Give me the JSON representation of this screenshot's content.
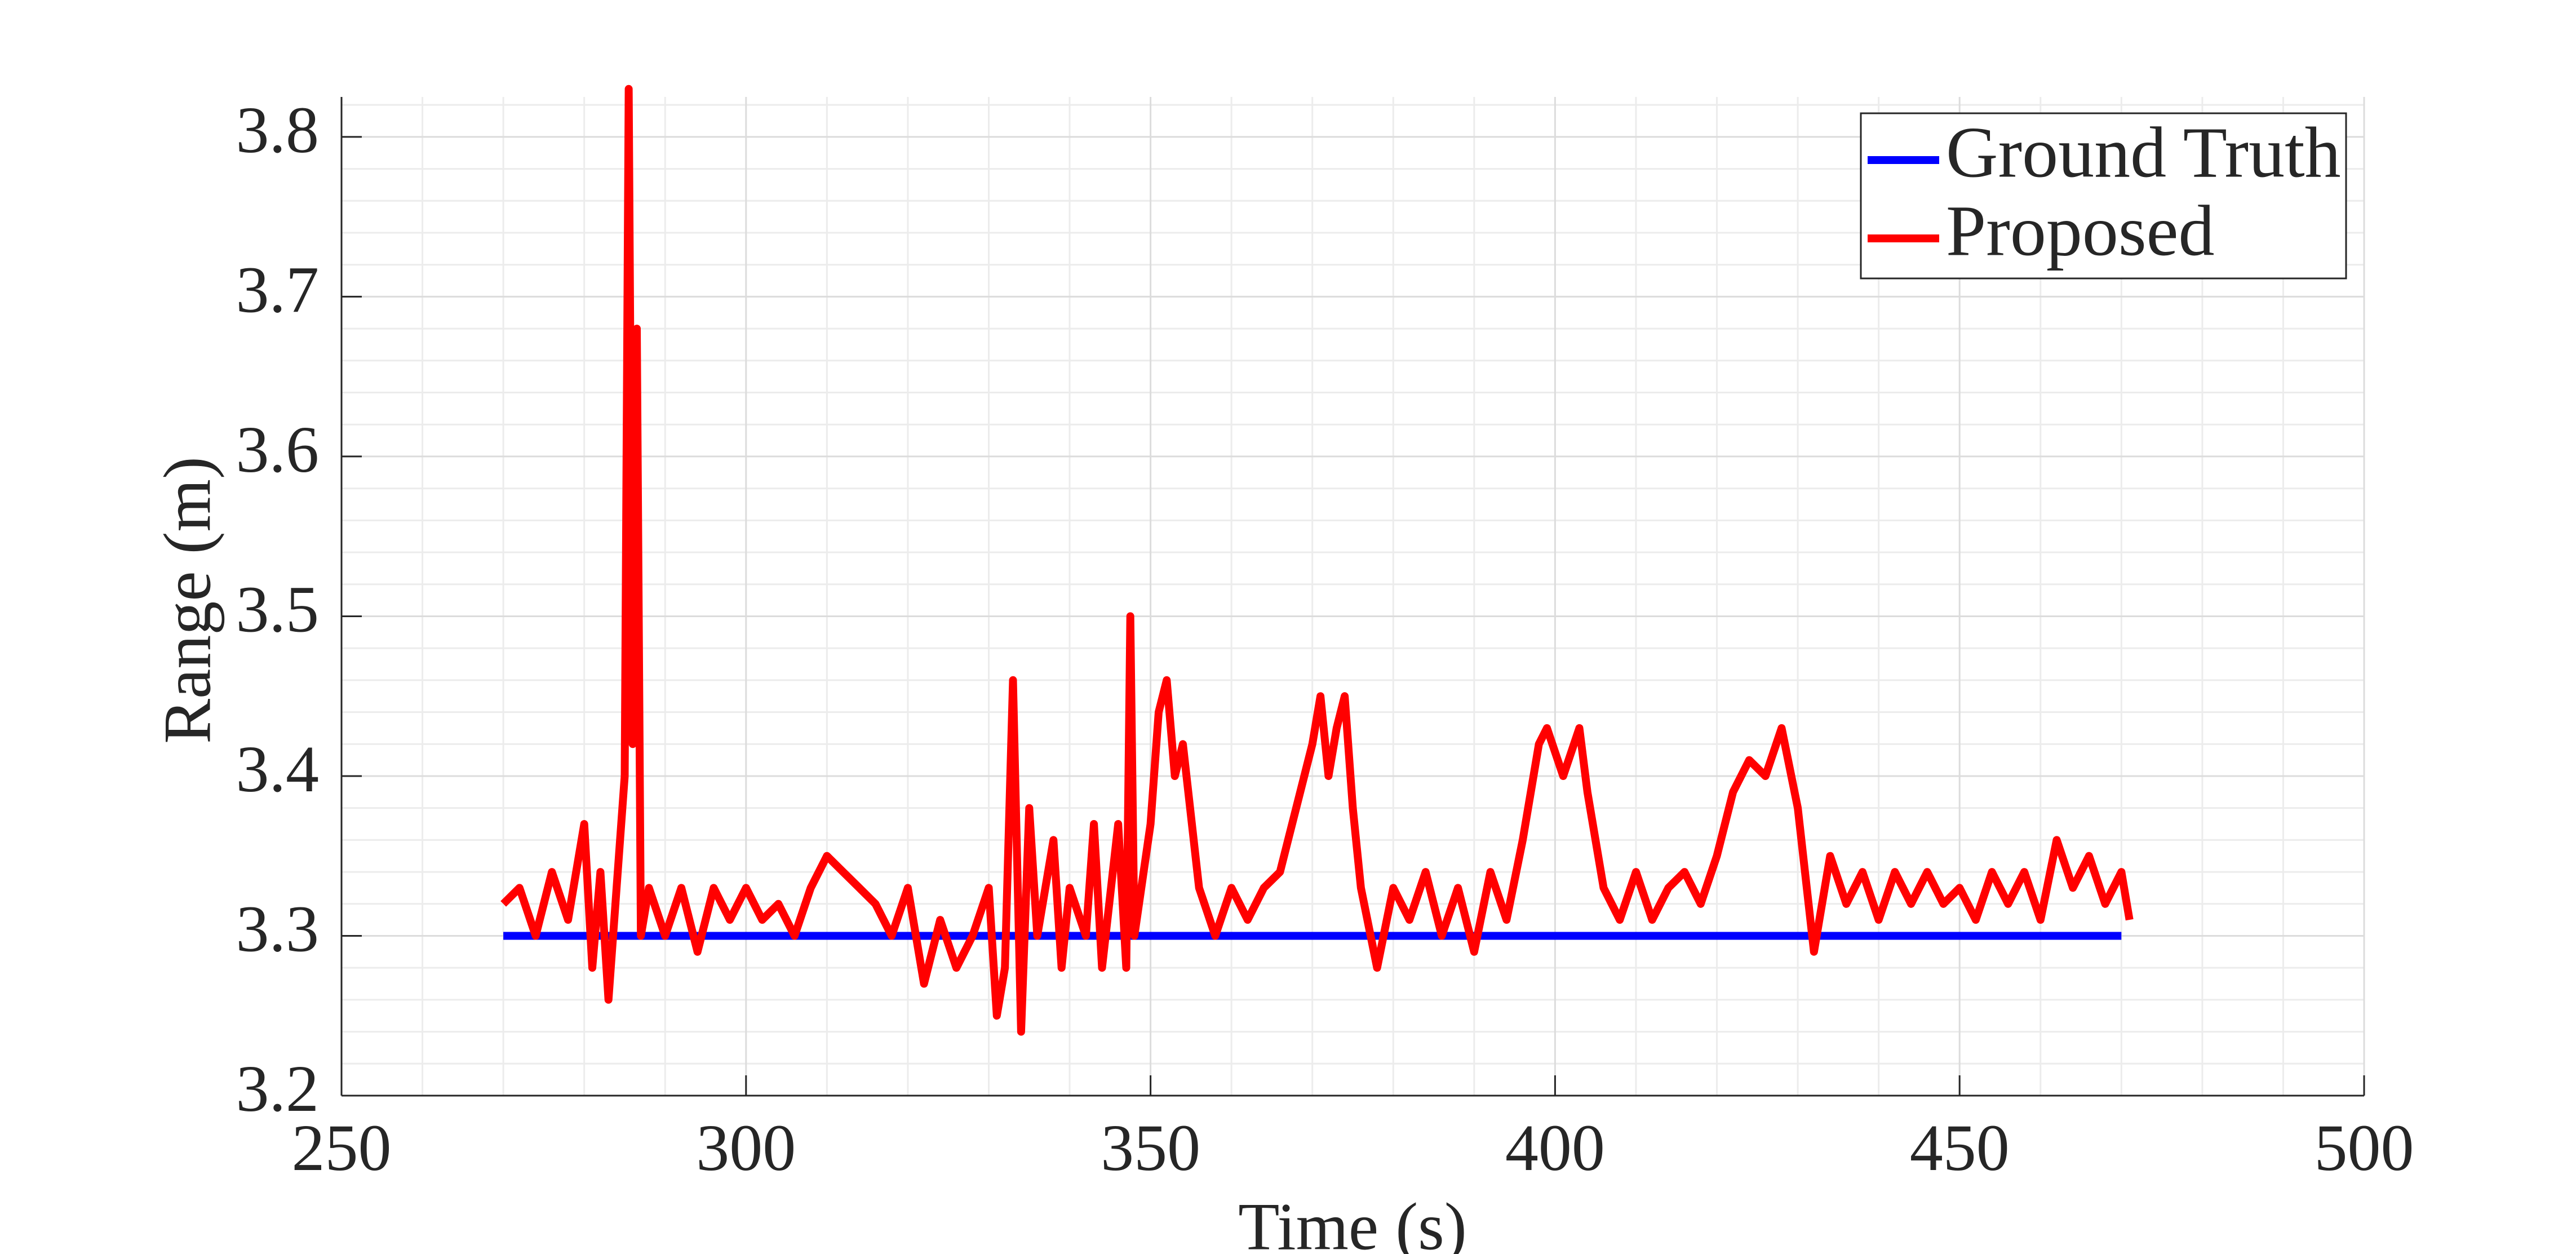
{
  "chart_data": {
    "type": "line",
    "xlabel": "Time (s)",
    "ylabel": "Range (m)",
    "xlim": [
      250,
      500
    ],
    "ylim": [
      3.2,
      3.825
    ],
    "xticks": [
      250,
      300,
      350,
      400,
      450,
      500
    ],
    "yticks": [
      3.2,
      3.3,
      3.4,
      3.5,
      3.6,
      3.7,
      3.8
    ],
    "minor_xticks": [
      260,
      270,
      280,
      290,
      310,
      320,
      330,
      340,
      360,
      370,
      380,
      390,
      410,
      420,
      430,
      440,
      460,
      470,
      480,
      490
    ],
    "minor_yticks": [
      3.22,
      3.24,
      3.26,
      3.28,
      3.32,
      3.34,
      3.36,
      3.38,
      3.42,
      3.44,
      3.46,
      3.48,
      3.52,
      3.54,
      3.56,
      3.58,
      3.62,
      3.64,
      3.66,
      3.68,
      3.72,
      3.74,
      3.76,
      3.78,
      3.82
    ],
    "grid": true,
    "legend": "upper right",
    "series": [
      {
        "name": "Ground Truth",
        "color": "#0000ff",
        "x": [
          270,
          470
        ],
        "values": [
          3.3,
          3.3
        ]
      },
      {
        "name": "Proposed",
        "color": "#ff0000",
        "x": [
          270,
          272,
          274,
          276,
          278,
          280,
          281,
          282,
          283,
          284,
          285,
          285.5,
          286,
          286.5,
          287,
          288,
          290,
          292,
          294,
          296,
          298,
          300,
          302,
          304,
          306,
          308,
          310,
          312,
          314,
          316,
          318,
          320,
          322,
          324,
          326,
          328,
          330,
          331,
          332,
          333,
          334,
          335,
          336,
          338,
          339,
          340,
          342,
          343,
          344,
          346,
          347,
          347.5,
          348,
          350,
          351,
          352,
          353,
          354,
          356,
          358,
          360,
          362,
          364,
          366,
          368,
          370,
          371,
          372,
          373,
          374,
          375,
          376,
          378,
          380,
          382,
          384,
          386,
          388,
          390,
          392,
          394,
          396,
          398,
          399,
          401,
          403,
          404,
          406,
          408,
          410,
          412,
          414,
          416,
          418,
          420,
          422,
          424,
          426,
          428,
          430,
          432,
          434,
          436,
          438,
          440,
          442,
          444,
          446,
          448,
          450,
          452,
          454,
          456,
          458,
          460,
          462,
          464,
          466,
          468,
          470,
          471
        ],
        "values": [
          3.32,
          3.33,
          3.3,
          3.34,
          3.31,
          3.37,
          3.28,
          3.34,
          3.26,
          3.33,
          3.4,
          3.83,
          3.42,
          3.68,
          3.3,
          3.33,
          3.3,
          3.33,
          3.29,
          3.33,
          3.31,
          3.33,
          3.31,
          3.32,
          3.3,
          3.33,
          3.35,
          3.34,
          3.33,
          3.32,
          3.3,
          3.33,
          3.27,
          3.31,
          3.28,
          3.3,
          3.33,
          3.25,
          3.28,
          3.46,
          3.24,
          3.38,
          3.3,
          3.36,
          3.28,
          3.33,
          3.3,
          3.37,
          3.28,
          3.37,
          3.28,
          3.5,
          3.3,
          3.37,
          3.44,
          3.46,
          3.4,
          3.42,
          3.33,
          3.3,
          3.33,
          3.31,
          3.33,
          3.34,
          3.38,
          3.42,
          3.45,
          3.4,
          3.43,
          3.45,
          3.38,
          3.33,
          3.28,
          3.33,
          3.31,
          3.34,
          3.3,
          3.33,
          3.29,
          3.34,
          3.31,
          3.36,
          3.42,
          3.43,
          3.4,
          3.43,
          3.39,
          3.33,
          3.31,
          3.34,
          3.31,
          3.33,
          3.34,
          3.32,
          3.35,
          3.39,
          3.41,
          3.4,
          3.43,
          3.38,
          3.29,
          3.35,
          3.32,
          3.34,
          3.31,
          3.34,
          3.32,
          3.34,
          3.32,
          3.33,
          3.31,
          3.34,
          3.32,
          3.34,
          3.31,
          3.36,
          3.33,
          3.35,
          3.32,
          3.34,
          3.31
        ]
      }
    ]
  }
}
